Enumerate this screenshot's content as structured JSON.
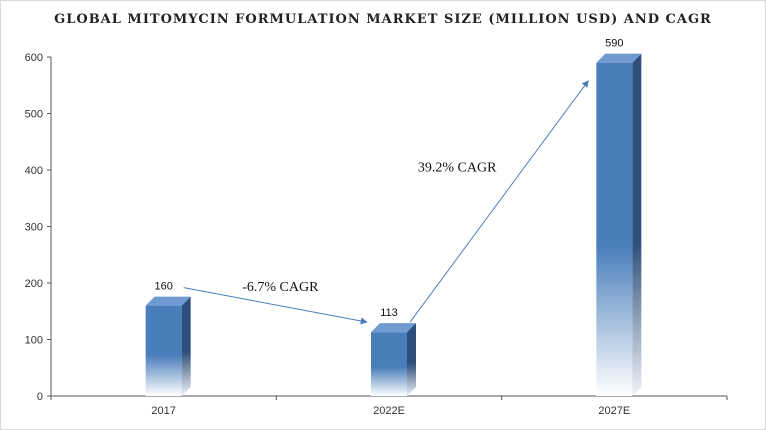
{
  "chart_data": {
    "type": "bar",
    "title": "GLOBAL MITOMYCIN FORMULATION MARKET SIZE (MILLION USD) AND CAGR",
    "categories": [
      "2017",
      "2022E",
      "2027E"
    ],
    "values": [
      160,
      113,
      590
    ],
    "value_labels": [
      "160",
      "113",
      "590"
    ],
    "ylim": [
      0,
      600
    ],
    "yticks": [
      0,
      100,
      200,
      300,
      400,
      500,
      600
    ],
    "ytick_labels": [
      "0",
      "100",
      "200",
      "300",
      "400",
      "500",
      "600"
    ],
    "xlabel": "",
    "ylabel": "",
    "grid": false,
    "legend": "none",
    "bar_style": "3d-column",
    "annotations": [
      {
        "text": "-6.7% CAGR",
        "from_category": "2017",
        "to_category": "2022E"
      },
      {
        "text": "39.2% CAGR",
        "from_category": "2022E",
        "to_category": "2027E"
      }
    ],
    "colors": {
      "bar_front": "#4a7ebb",
      "bar_side": "#2e4f7a",
      "bar_top": "#6f9bd1",
      "arrow": "#4a7ebb",
      "axis": "#555555"
    }
  }
}
